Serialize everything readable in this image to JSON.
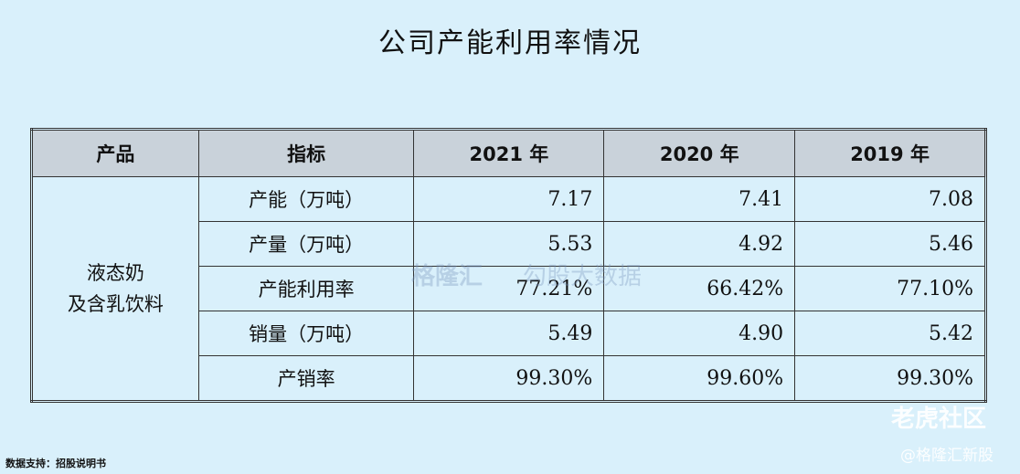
{
  "title": "公司产能利用率情况",
  "table": {
    "header": [
      "产品",
      "指标",
      "2021 年",
      "2020 年",
      "2019 年"
    ],
    "product": [
      "液态奶",
      "及含乳饮料"
    ],
    "rows": [
      [
        "产能（万吨）",
        "7.17",
        "7.41",
        "7.08"
      ],
      [
        "产量（万吨）",
        "5.53",
        "4.92",
        "5.46"
      ],
      [
        "产能利用率",
        "77.21%",
        "66.42%",
        "77.10%"
      ],
      [
        "销量（万吨）",
        "5.49",
        "4.90",
        "5.42"
      ],
      [
        "产销率",
        "99.30%",
        "99.60%",
        "99.30%"
      ]
    ]
  },
  "source": "数据支持：招股说明书",
  "watermarks": [
    "格隆汇",
    "勾股大数据",
    "老虎社区",
    "@格隆汇新股"
  ]
}
